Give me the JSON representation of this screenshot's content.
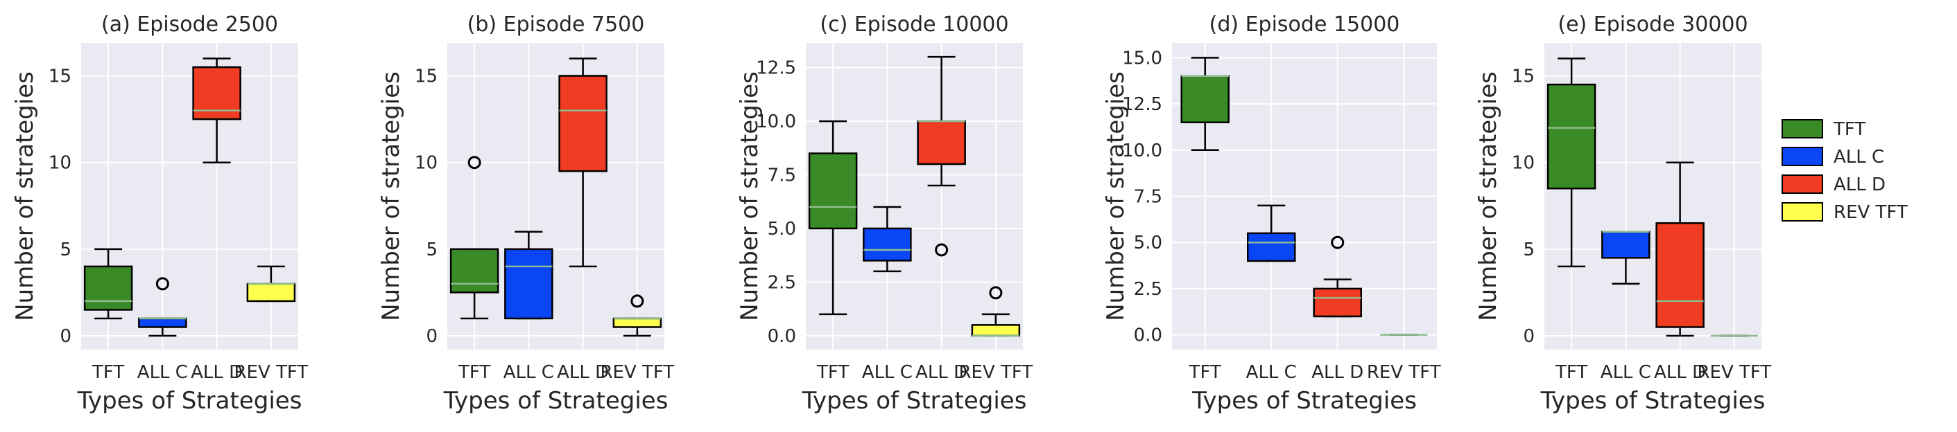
{
  "chart_data": [
    {
      "type": "box",
      "title": "(a) Episode 2500",
      "xlabel": "Types of Strategies",
      "ylabel": "Number of strategies",
      "ylim": [
        -0.8,
        16.9
      ],
      "yticks": [
        0,
        5,
        10,
        15
      ],
      "ytick_labels": [
        "0",
        "5",
        "10",
        "15"
      ],
      "categories": [
        "TFT",
        "ALL C",
        "ALL D",
        "REV TFT"
      ],
      "boxes": [
        {
          "name": "TFT",
          "min": 1,
          "q1": 1.5,
          "median": 2,
          "q3": 4,
          "max": 5,
          "fliers": []
        },
        {
          "name": "ALL C",
          "min": 0,
          "q1": 0.5,
          "median": 1,
          "q3": 1,
          "max": 1,
          "fliers": [
            3
          ]
        },
        {
          "name": "ALL D",
          "min": 10,
          "q1": 12.5,
          "median": 13,
          "q3": 15.5,
          "max": 16,
          "fliers": []
        },
        {
          "name": "REV TFT",
          "min": 2,
          "q1": 2,
          "median": 3,
          "q3": 3,
          "max": 4,
          "fliers": []
        }
      ]
    },
    {
      "type": "box",
      "title": "(b) Episode 7500",
      "xlabel": "Types of Strategies",
      "ylabel": "Number of strategies",
      "ylim": [
        -0.8,
        16.9
      ],
      "yticks": [
        0,
        5,
        10,
        15
      ],
      "ytick_labels": [
        "0",
        "5",
        "10",
        "15"
      ],
      "categories": [
        "TFT",
        "ALL C",
        "ALL D",
        "REV TFT"
      ],
      "boxes": [
        {
          "name": "TFT",
          "min": 1,
          "q1": 2.5,
          "median": 3,
          "q3": 5,
          "max": 5,
          "fliers": [
            10
          ]
        },
        {
          "name": "ALL C",
          "min": 1,
          "q1": 1,
          "median": 4,
          "q3": 5,
          "max": 6,
          "fliers": []
        },
        {
          "name": "ALL D",
          "min": 4,
          "q1": 9.5,
          "median": 13,
          "q3": 15,
          "max": 16,
          "fliers": []
        },
        {
          "name": "REV TFT",
          "min": 0,
          "q1": 0.5,
          "median": 1,
          "q3": 1,
          "max": 1,
          "fliers": [
            2
          ]
        }
      ]
    },
    {
      "type": "box",
      "title": "(c) Episode 10000",
      "xlabel": "Types of Strategies",
      "ylabel": "Number of strategies",
      "ylim": [
        -0.65,
        13.65
      ],
      "yticks": [
        0,
        2.5,
        5,
        7.5,
        10,
        12.5
      ],
      "ytick_labels": [
        "0.0",
        "2.5",
        "5.0",
        "7.5",
        "10.0",
        "12.5"
      ],
      "categories": [
        "TFT",
        "ALL C",
        "ALL D",
        "REV TFT"
      ],
      "boxes": [
        {
          "name": "TFT",
          "min": 1,
          "q1": 5,
          "median": 6,
          "q3": 8.5,
          "max": 10,
          "fliers": []
        },
        {
          "name": "ALL C",
          "min": 3,
          "q1": 3.5,
          "median": 4,
          "q3": 5,
          "max": 6,
          "fliers": []
        },
        {
          "name": "ALL D",
          "min": 7,
          "q1": 8,
          "median": 10,
          "q3": 10,
          "max": 13,
          "fliers": [
            4
          ]
        },
        {
          "name": "REV TFT",
          "min": 0,
          "q1": 0,
          "median": 0,
          "q3": 0.5,
          "max": 1,
          "fliers": [
            2
          ]
        }
      ]
    },
    {
      "type": "box",
      "title": "(d) Episode 15000",
      "xlabel": "Types of Strategies",
      "ylabel": "Number of strategies",
      "ylim": [
        -0.8,
        15.8
      ],
      "yticks": [
        0,
        2.5,
        5,
        7.5,
        10,
        12.5,
        15
      ],
      "ytick_labels": [
        "0.0",
        "2.5",
        "5.0",
        "7.5",
        "10.0",
        "12.5",
        "15.0"
      ],
      "categories": [
        "TFT",
        "ALL C",
        "ALL D",
        "REV TFT"
      ],
      "boxes": [
        {
          "name": "TFT",
          "min": 10,
          "q1": 11.5,
          "median": 14,
          "q3": 14,
          "max": 15,
          "fliers": []
        },
        {
          "name": "ALL C",
          "min": 4,
          "q1": 4,
          "median": 5,
          "q3": 5.5,
          "max": 7,
          "fliers": []
        },
        {
          "name": "ALL D",
          "min": 1,
          "q1": 1,
          "median": 2,
          "q3": 2.5,
          "max": 3,
          "fliers": [
            5
          ]
        },
        {
          "name": "REV TFT",
          "min": 0,
          "q1": 0,
          "median": 0,
          "q3": 0,
          "max": 0,
          "fliers": []
        }
      ]
    },
    {
      "type": "box",
      "title": "(e) Episode 30000",
      "xlabel": "Types of Strategies",
      "ylabel": "Number of strategies",
      "ylim": [
        -0.8,
        16.9
      ],
      "yticks": [
        0,
        5,
        10,
        15
      ],
      "ytick_labels": [
        "0",
        "5",
        "10",
        "15"
      ],
      "categories": [
        "TFT",
        "ALL C",
        "ALL D",
        "REV TFT"
      ],
      "boxes": [
        {
          "name": "TFT",
          "min": 4,
          "q1": 8.5,
          "median": 12,
          "q3": 14.5,
          "max": 16,
          "fliers": []
        },
        {
          "name": "ALL C",
          "min": 3,
          "q1": 4.5,
          "median": 6,
          "q3": 6,
          "max": 6,
          "fliers": []
        },
        {
          "name": "ALL D",
          "min": 0,
          "q1": 0.5,
          "median": 2,
          "q3": 6.5,
          "max": 10,
          "fliers": []
        },
        {
          "name": "REV TFT",
          "min": 0,
          "q1": 0,
          "median": 0,
          "q3": 0,
          "max": 0,
          "fliers": []
        }
      ]
    }
  ],
  "legend": {
    "placement": "right",
    "items": [
      {
        "label": "TFT",
        "color": "#3a8a27"
      },
      {
        "label": "ALL C",
        "color": "#0a46f5"
      },
      {
        "label": "ALL D",
        "color": "#f03c23"
      },
      {
        "label": "REV TFT",
        "color": "#ffff4d"
      }
    ]
  },
  "style": {
    "plot_background": "#eaeaf2",
    "grid_color": "#ffffff",
    "median_color": "#8fbc8f",
    "grid": true
  }
}
